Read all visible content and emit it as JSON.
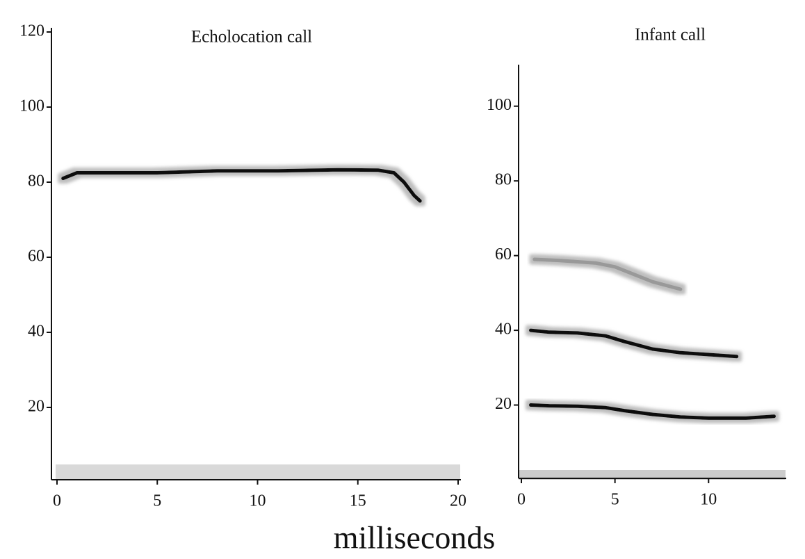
{
  "chart_data": [
    {
      "type": "line",
      "title": "Echolocation call",
      "xlim": [
        0,
        20
      ],
      "xticks": [
        0,
        5,
        10,
        15,
        20
      ],
      "ylim": [
        0,
        120
      ],
      "yticks": [
        20,
        40,
        60,
        80,
        100,
        120
      ],
      "series": [
        {
          "color": "#111111",
          "x": [
            0.3,
            1,
            3,
            5,
            8,
            11,
            14,
            16,
            16.8,
            17.3,
            17.8,
            18.1
          ],
          "values": [
            81,
            82.5,
            82.5,
            82.5,
            83,
            83,
            83.3,
            83.2,
            82.5,
            80,
            76.5,
            75
          ]
        }
      ]
    },
    {
      "type": "line",
      "title": "Infant call",
      "xlim": [
        0,
        14
      ],
      "xticks": [
        0,
        5,
        10
      ],
      "ylim": [
        0,
        110
      ],
      "yticks": [
        20,
        40,
        60,
        80,
        100
      ],
      "series": [
        {
          "color": "#999999",
          "x": [
            0.7,
            2,
            4,
            5,
            6,
            7,
            8.5
          ],
          "values": [
            59,
            58.7,
            58,
            57,
            55,
            53,
            51
          ]
        },
        {
          "color": "#111111",
          "x": [
            0.5,
            1.5,
            3,
            4.5,
            5.5,
            7,
            8.5,
            10,
            11.5
          ],
          "values": [
            40,
            39.5,
            39.3,
            38.5,
            37,
            35,
            34,
            33.5,
            33
          ]
        },
        {
          "color": "#111111",
          "x": [
            0.5,
            1.5,
            3,
            4.5,
            5.5,
            7,
            8.5,
            10,
            12,
            13.5
          ],
          "values": [
            20,
            19.8,
            19.7,
            19.3,
            18.5,
            17.5,
            16.8,
            16.5,
            16.5,
            17
          ]
        }
      ]
    }
  ],
  "shared_xlabel": "milliseconds"
}
